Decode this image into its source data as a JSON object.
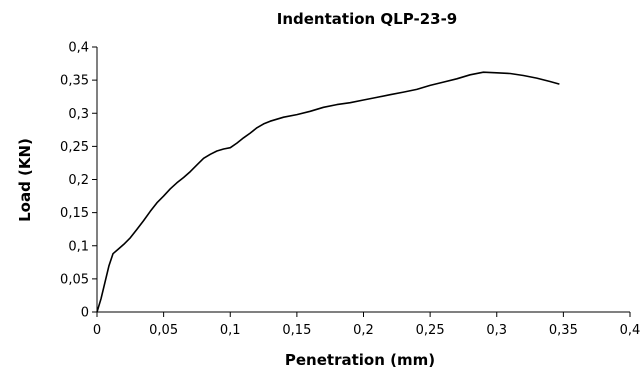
{
  "chart_data": {
    "type": "line",
    "title": "Indentation QLP-23-9",
    "xlabel": "Penetration (mm)",
    "ylabel": "Load (KN)",
    "xlim": [
      0,
      0.4
    ],
    "ylim": [
      0,
      0.4
    ],
    "x_ticks": [
      "0",
      "0,05",
      "0,1",
      "0,15",
      "0,2",
      "0,25",
      "0,3",
      "0,35",
      "0,4"
    ],
    "y_ticks": [
      "0",
      "0,05",
      "0,1",
      "0,15",
      "0,2",
      "0,25",
      "0,3",
      "0,35",
      "0,4"
    ],
    "grid": false,
    "legend": "none",
    "series": [
      {
        "color": "#000000",
        "x": [
          0,
          0.003,
          0.006,
          0.009,
          0.012,
          0.016,
          0.02,
          0.025,
          0.03,
          0.035,
          0.04,
          0.045,
          0.05,
          0.055,
          0.06,
          0.065,
          0.07,
          0.075,
          0.08,
          0.085,
          0.09,
          0.095,
          0.1,
          0.105,
          0.11,
          0.115,
          0.12,
          0.125,
          0.13,
          0.14,
          0.15,
          0.16,
          0.17,
          0.18,
          0.19,
          0.2,
          0.21,
          0.22,
          0.23,
          0.24,
          0.25,
          0.26,
          0.27,
          0.28,
          0.29,
          0.3,
          0.31,
          0.32,
          0.33,
          0.34,
          0.347
        ],
        "y": [
          0,
          0.02,
          0.045,
          0.07,
          0.088,
          0.095,
          0.102,
          0.112,
          0.125,
          0.138,
          0.152,
          0.165,
          0.175,
          0.186,
          0.195,
          0.203,
          0.212,
          0.222,
          0.232,
          0.238,
          0.243,
          0.246,
          0.248,
          0.255,
          0.263,
          0.27,
          0.278,
          0.284,
          0.288,
          0.294,
          0.298,
          0.303,
          0.309,
          0.313,
          0.316,
          0.32,
          0.324,
          0.328,
          0.332,
          0.336,
          0.342,
          0.347,
          0.352,
          0.358,
          0.362,
          0.361,
          0.36,
          0.357,
          0.353,
          0.348,
          0.344
        ]
      }
    ]
  }
}
